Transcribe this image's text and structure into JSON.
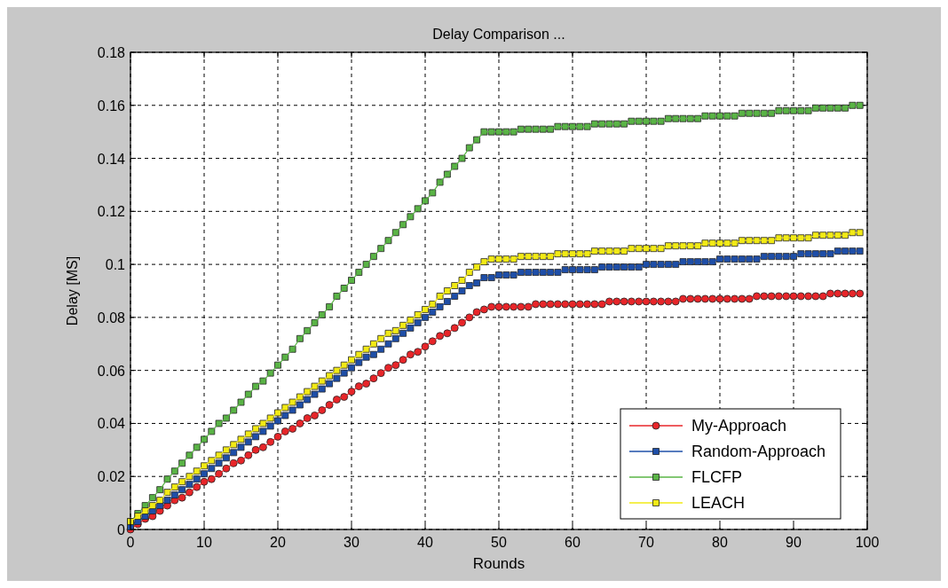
{
  "chart_data": {
    "type": "line",
    "title": "Delay Comparison ...",
    "xlabel": "Rounds",
    "ylabel": "Delay [MS]",
    "x": [
      0,
      1,
      2,
      3,
      4,
      5,
      6,
      7,
      8,
      9,
      10,
      11,
      12,
      13,
      14,
      15,
      16,
      17,
      18,
      19,
      20,
      21,
      22,
      23,
      24,
      25,
      26,
      27,
      28,
      29,
      30,
      31,
      32,
      33,
      34,
      35,
      36,
      37,
      38,
      39,
      40,
      41,
      42,
      43,
      44,
      45,
      46,
      47,
      48,
      49,
      50,
      51,
      52,
      53,
      54,
      55,
      56,
      57,
      58,
      59,
      60,
      61,
      62,
      63,
      64,
      65,
      66,
      67,
      68,
      69,
      70,
      71,
      72,
      73,
      74,
      75,
      76,
      77,
      78,
      79,
      80,
      81,
      82,
      83,
      84,
      85,
      86,
      87,
      88,
      89,
      90,
      91,
      92,
      93,
      94,
      95,
      96,
      97,
      98,
      99
    ],
    "series": [
      {
        "name": "My-Approach",
        "color": "#e8262a",
        "marker": "circle",
        "values": [
          0,
          0.002,
          0.004,
          0.005,
          0.007,
          0.009,
          0.011,
          0.012,
          0.014,
          0.016,
          0.018,
          0.019,
          0.021,
          0.023,
          0.025,
          0.026,
          0.028,
          0.03,
          0.031,
          0.033,
          0.035,
          0.037,
          0.038,
          0.04,
          0.042,
          0.043,
          0.045,
          0.047,
          0.049,
          0.05,
          0.052,
          0.054,
          0.055,
          0.057,
          0.059,
          0.061,
          0.062,
          0.064,
          0.066,
          0.067,
          0.069,
          0.071,
          0.073,
          0.074,
          0.076,
          0.078,
          0.08,
          0.082,
          0.083,
          0.084,
          0.084,
          0.084,
          0.084,
          0.084,
          0.084,
          0.085,
          0.085,
          0.085,
          0.085,
          0.085,
          0.085,
          0.085,
          0.085,
          0.085,
          0.085,
          0.086,
          0.086,
          0.086,
          0.086,
          0.086,
          0.086,
          0.086,
          0.086,
          0.086,
          0.086,
          0.087,
          0.087,
          0.087,
          0.087,
          0.087,
          0.087,
          0.087,
          0.087,
          0.087,
          0.087,
          0.088,
          0.088,
          0.088,
          0.088,
          0.088,
          0.088,
          0.088,
          0.088,
          0.088,
          0.088,
          0.089,
          0.089,
          0.089,
          0.089,
          0.089
        ]
      },
      {
        "name": "Random-Approach",
        "color": "#1f4fa8",
        "marker": "square",
        "values": [
          0.001,
          0.003,
          0.005,
          0.007,
          0.009,
          0.011,
          0.013,
          0.015,
          0.017,
          0.019,
          0.021,
          0.023,
          0.025,
          0.027,
          0.029,
          0.031,
          0.033,
          0.035,
          0.037,
          0.039,
          0.041,
          0.043,
          0.045,
          0.047,
          0.049,
          0.051,
          0.053,
          0.055,
          0.057,
          0.059,
          0.061,
          0.063,
          0.065,
          0.066,
          0.068,
          0.07,
          0.072,
          0.074,
          0.076,
          0.078,
          0.08,
          0.082,
          0.084,
          0.086,
          0.088,
          0.09,
          0.092,
          0.093,
          0.095,
          0.095,
          0.096,
          0.096,
          0.096,
          0.097,
          0.097,
          0.097,
          0.097,
          0.097,
          0.097,
          0.098,
          0.098,
          0.098,
          0.098,
          0.098,
          0.099,
          0.099,
          0.099,
          0.099,
          0.099,
          0.099,
          0.1,
          0.1,
          0.1,
          0.1,
          0.1,
          0.101,
          0.101,
          0.101,
          0.101,
          0.101,
          0.102,
          0.102,
          0.102,
          0.102,
          0.102,
          0.102,
          0.103,
          0.103,
          0.103,
          0.103,
          0.103,
          0.104,
          0.104,
          0.104,
          0.104,
          0.104,
          0.105,
          0.105,
          0.105,
          0.105
        ]
      },
      {
        "name": "FLCFP",
        "color": "#5ab446",
        "marker": "square",
        "values": [
          0.003,
          0.006,
          0.009,
          0.012,
          0.015,
          0.019,
          0.022,
          0.025,
          0.028,
          0.031,
          0.034,
          0.037,
          0.04,
          0.042,
          0.045,
          0.048,
          0.051,
          0.054,
          0.056,
          0.059,
          0.062,
          0.065,
          0.068,
          0.072,
          0.075,
          0.078,
          0.081,
          0.084,
          0.088,
          0.091,
          0.094,
          0.097,
          0.1,
          0.103,
          0.106,
          0.109,
          0.112,
          0.115,
          0.118,
          0.121,
          0.124,
          0.127,
          0.131,
          0.134,
          0.137,
          0.14,
          0.144,
          0.147,
          0.15,
          0.15,
          0.15,
          0.15,
          0.15,
          0.151,
          0.151,
          0.151,
          0.151,
          0.151,
          0.152,
          0.152,
          0.152,
          0.152,
          0.152,
          0.153,
          0.153,
          0.153,
          0.153,
          0.153,
          0.154,
          0.154,
          0.154,
          0.154,
          0.154,
          0.155,
          0.155,
          0.155,
          0.155,
          0.155,
          0.156,
          0.156,
          0.156,
          0.156,
          0.156,
          0.157,
          0.157,
          0.157,
          0.157,
          0.157,
          0.158,
          0.158,
          0.158,
          0.158,
          0.158,
          0.159,
          0.159,
          0.159,
          0.159,
          0.159,
          0.16,
          0.16
        ]
      },
      {
        "name": "LEACH",
        "color": "#f2ea16",
        "marker": "square",
        "values": [
          0.003,
          0.005,
          0.007,
          0.009,
          0.011,
          0.014,
          0.016,
          0.018,
          0.02,
          0.022,
          0.024,
          0.026,
          0.028,
          0.03,
          0.032,
          0.034,
          0.036,
          0.038,
          0.04,
          0.042,
          0.044,
          0.046,
          0.048,
          0.05,
          0.052,
          0.054,
          0.056,
          0.058,
          0.06,
          0.062,
          0.064,
          0.066,
          0.068,
          0.07,
          0.072,
          0.074,
          0.075,
          0.077,
          0.079,
          0.081,
          0.083,
          0.085,
          0.088,
          0.09,
          0.092,
          0.094,
          0.097,
          0.099,
          0.101,
          0.102,
          0.102,
          0.102,
          0.102,
          0.103,
          0.103,
          0.103,
          0.103,
          0.103,
          0.104,
          0.104,
          0.104,
          0.104,
          0.104,
          0.105,
          0.105,
          0.105,
          0.105,
          0.105,
          0.106,
          0.106,
          0.106,
          0.106,
          0.106,
          0.107,
          0.107,
          0.107,
          0.107,
          0.107,
          0.108,
          0.108,
          0.108,
          0.108,
          0.108,
          0.109,
          0.109,
          0.109,
          0.109,
          0.109,
          0.11,
          0.11,
          0.11,
          0.11,
          0.11,
          0.111,
          0.111,
          0.111,
          0.111,
          0.111,
          0.112,
          0.112
        ]
      }
    ],
    "xlim": [
      0,
      100
    ],
    "xticks": [
      0,
      10,
      20,
      30,
      40,
      50,
      60,
      70,
      80,
      90,
      100
    ],
    "ylim": [
      0,
      0.18
    ],
    "yticks": [
      0,
      0.02,
      0.04,
      0.06,
      0.08,
      0.1,
      0.12,
      0.14,
      0.16,
      0.18
    ],
    "grid": true,
    "legend": "bottom right",
    "line_style": "solid"
  }
}
